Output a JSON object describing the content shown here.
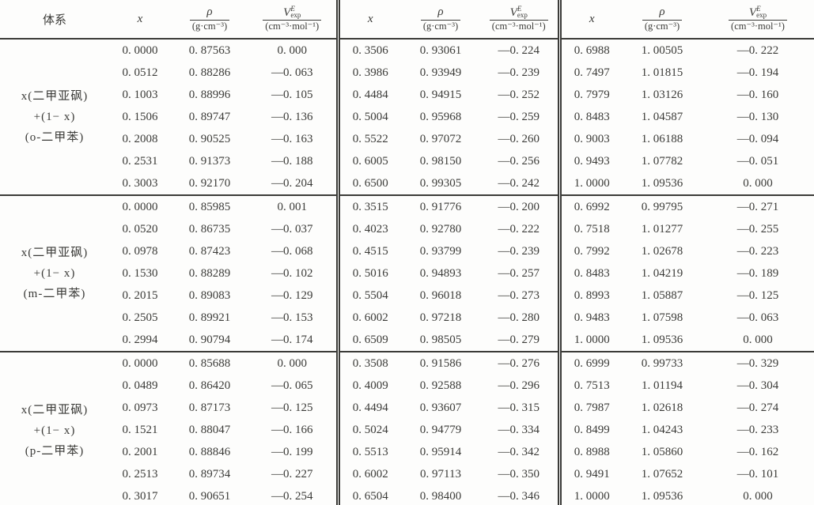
{
  "header": {
    "system_label": "体系",
    "col_x": "x",
    "rho_numerator": "ρ",
    "rho_denominator": "(g·cm⁻³)",
    "v_base": "V",
    "v_sup": "E",
    "v_sub": "exp",
    "v_denominator": "(cm⁻³·mol⁻¹)"
  },
  "groups": [
    {
      "label_lines": [
        "x(二甲亚砜)",
        "+(1− x)",
        "(o-二甲苯)"
      ],
      "rows": [
        [
          "0. 0000",
          "0. 87563",
          "0. 000",
          "0. 3506",
          "0. 93061",
          "—0. 224",
          "0. 6988",
          "1. 00505",
          "—0. 222"
        ],
        [
          "0. 0512",
          "0. 88286",
          "—0. 063",
          "0. 3986",
          "0. 93949",
          "—0. 239",
          "0. 7497",
          "1. 01815",
          "—0. 194"
        ],
        [
          "0. 1003",
          "0. 88996",
          "—0. 105",
          "0. 4484",
          "0. 94915",
          "—0. 252",
          "0. 7979",
          "1. 03126",
          "—0. 160"
        ],
        [
          "0. 1506",
          "0. 89747",
          "—0. 136",
          "0. 5004",
          "0. 95968",
          "—0. 259",
          "0. 8483",
          "1. 04587",
          "—0. 130"
        ],
        [
          "0. 2008",
          "0. 90525",
          "—0. 163",
          "0. 5522",
          "0. 97072",
          "—0. 260",
          "0. 9003",
          "1. 06188",
          "—0. 094"
        ],
        [
          "0. 2531",
          "0. 91373",
          "—0. 188",
          "0. 6005",
          "0. 98150",
          "—0. 256",
          "0. 9493",
          "1. 07782",
          "—0. 051"
        ],
        [
          "0. 3003",
          "0. 92170",
          "—0. 204",
          "0. 6500",
          "0. 99305",
          "—0. 242",
          "1. 0000",
          "1. 09536",
          "0. 000"
        ]
      ]
    },
    {
      "label_lines": [
        "x(二甲亚砜)",
        "+(1− x)",
        "(m-二甲苯)"
      ],
      "rows": [
        [
          "0. 0000",
          "0. 85985",
          "0. 001",
          "0. 3515",
          "0. 91776",
          "—0. 200",
          "0. 6992",
          "0. 99795",
          "—0. 271"
        ],
        [
          "0. 0520",
          "0. 86735",
          "—0. 037",
          "0. 4023",
          "0. 92780",
          "—0. 222",
          "0. 7518",
          "1. 01277",
          "—0. 255"
        ],
        [
          "0. 0978",
          "0. 87423",
          "—0. 068",
          "0. 4515",
          "0. 93799",
          "—0. 239",
          "0. 7992",
          "1. 02678",
          "—0. 223"
        ],
        [
          "0. 1530",
          "0. 88289",
          "—0. 102",
          "0. 5016",
          "0. 94893",
          "—0. 257",
          "0. 8483",
          "1. 04219",
          "—0. 189"
        ],
        [
          "0. 2015",
          "0. 89083",
          "—0. 129",
          "0. 5504",
          "0. 96018",
          "—0. 273",
          "0. 8993",
          "1. 05887",
          "—0. 125"
        ],
        [
          "0. 2505",
          "0. 89921",
          "—0. 153",
          "0. 6002",
          "0. 97218",
          "—0. 280",
          "0. 9483",
          "1. 07598",
          "—0. 063"
        ],
        [
          "0. 2994",
          "0. 90794",
          "—0. 174",
          "0. 6509",
          "0. 98505",
          "—0. 279",
          "1. 0000",
          "1. 09536",
          "0. 000"
        ]
      ]
    },
    {
      "label_lines": [
        "x(二甲亚砜)",
        "+(1− x)",
        "(p-二甲苯)"
      ],
      "rows": [
        [
          "0. 0000",
          "0. 85688",
          "0. 000",
          "0. 3508",
          "0. 91586",
          "—0. 276",
          "0. 6999",
          "0. 99733",
          "—0. 329"
        ],
        [
          "0. 0489",
          "0. 86420",
          "—0. 065",
          "0. 4009",
          "0. 92588",
          "—0. 296",
          "0. 7513",
          "1. 01194",
          "—0. 304"
        ],
        [
          "0. 0973",
          "0. 87173",
          "—0. 125",
          "0. 4494",
          "0. 93607",
          "—0. 315",
          "0. 7987",
          "1. 02618",
          "—0. 274"
        ],
        [
          "0. 1521",
          "0. 88047",
          "—0. 166",
          "0. 5024",
          "0. 94779",
          "—0. 334",
          "0. 8499",
          "1. 04243",
          "—0. 233"
        ],
        [
          "0. 2001",
          "0. 88846",
          "—0. 199",
          "0. 5513",
          "0. 95914",
          "—0. 342",
          "0. 8988",
          "1. 05860",
          "—0. 162"
        ],
        [
          "0. 2513",
          "0. 89734",
          "—0. 227",
          "0. 6002",
          "0. 97113",
          "—0. 350",
          "0. 9491",
          "1. 07652",
          "—0. 101"
        ],
        [
          "0. 3017",
          "0. 90651",
          "—0. 254",
          "0. 6504",
          "0. 98400",
          "—0. 346",
          "1. 0000",
          "1. 09536",
          "0. 000"
        ]
      ]
    }
  ]
}
